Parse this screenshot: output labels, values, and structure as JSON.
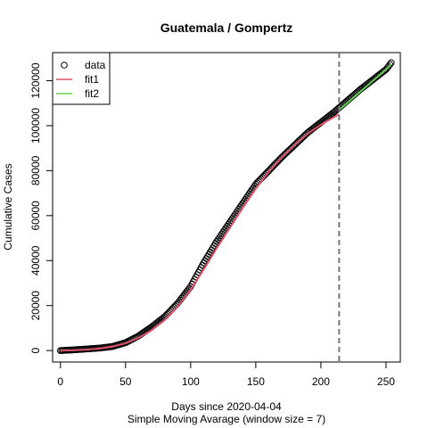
{
  "chart_data": {
    "type": "line",
    "title": "Guatemala / Gompertz",
    "xlabel": "Days since 2020-04-04",
    "xlabel2": "Simple Moving Avarage (window size = 7)",
    "ylabel": "Cumulative Cases",
    "xlim": [
      -6,
      261
    ],
    "ylim": [
      -5100,
      132500
    ],
    "x_ticks": [
      0,
      50,
      100,
      150,
      200,
      250
    ],
    "y_ticks": [
      0,
      20000,
      40000,
      60000,
      80000,
      100000,
      120000
    ],
    "x_tick_labels": [
      "0",
      "50",
      "100",
      "150",
      "200",
      "250"
    ],
    "y_tick_labels": [
      "0",
      "20000",
      "40000",
      "60000",
      "80000",
      "100000",
      "120000"
    ],
    "vline_x": 214,
    "legend": {
      "position": "top-left",
      "entries": [
        {
          "label": "data",
          "symbol": "circle",
          "color": "#000000"
        },
        {
          "label": "fit1",
          "symbol": "line",
          "color": "#DF536B"
        },
        {
          "label": "fit2",
          "symbol": "line",
          "color": "#61D04F"
        }
      ]
    },
    "data_points": {
      "x": [
        0,
        10,
        20,
        30,
        40,
        50,
        60,
        70,
        80,
        90,
        100,
        110,
        120,
        130,
        140,
        150,
        160,
        170,
        180,
        190,
        200,
        210,
        220,
        230,
        240,
        250,
        254
      ],
      "y": [
        0,
        300,
        700,
        1100,
        1800,
        3500,
        6500,
        10500,
        15000,
        21000,
        28500,
        39000,
        48500,
        57000,
        65500,
        74000,
        80000,
        86000,
        91500,
        97000,
        101500,
        106000,
        111000,
        116000,
        120500,
        125000,
        128000
      ]
    },
    "series": [
      {
        "name": "fit1",
        "color": "#DF536B",
        "x": [
          0,
          10,
          20,
          30,
          40,
          50,
          60,
          70,
          80,
          90,
          100,
          110,
          120,
          130,
          140,
          150,
          160,
          170,
          180,
          190,
          200,
          210,
          214
        ],
        "y": [
          50,
          150,
          400,
          900,
          1800,
          3200,
          5600,
          9000,
          13500,
          19500,
          27000,
          36000,
          45500,
          54500,
          63500,
          72000,
          79500,
          86000,
          91500,
          96500,
          100500,
          103800,
          105000
        ]
      },
      {
        "name": "fit2",
        "color": "#61D04F",
        "x": [
          214,
          220,
          230,
          240,
          250,
          254
        ],
        "y": [
          107000,
          110000,
          115000,
          120000,
          125000,
          127500
        ]
      }
    ]
  }
}
